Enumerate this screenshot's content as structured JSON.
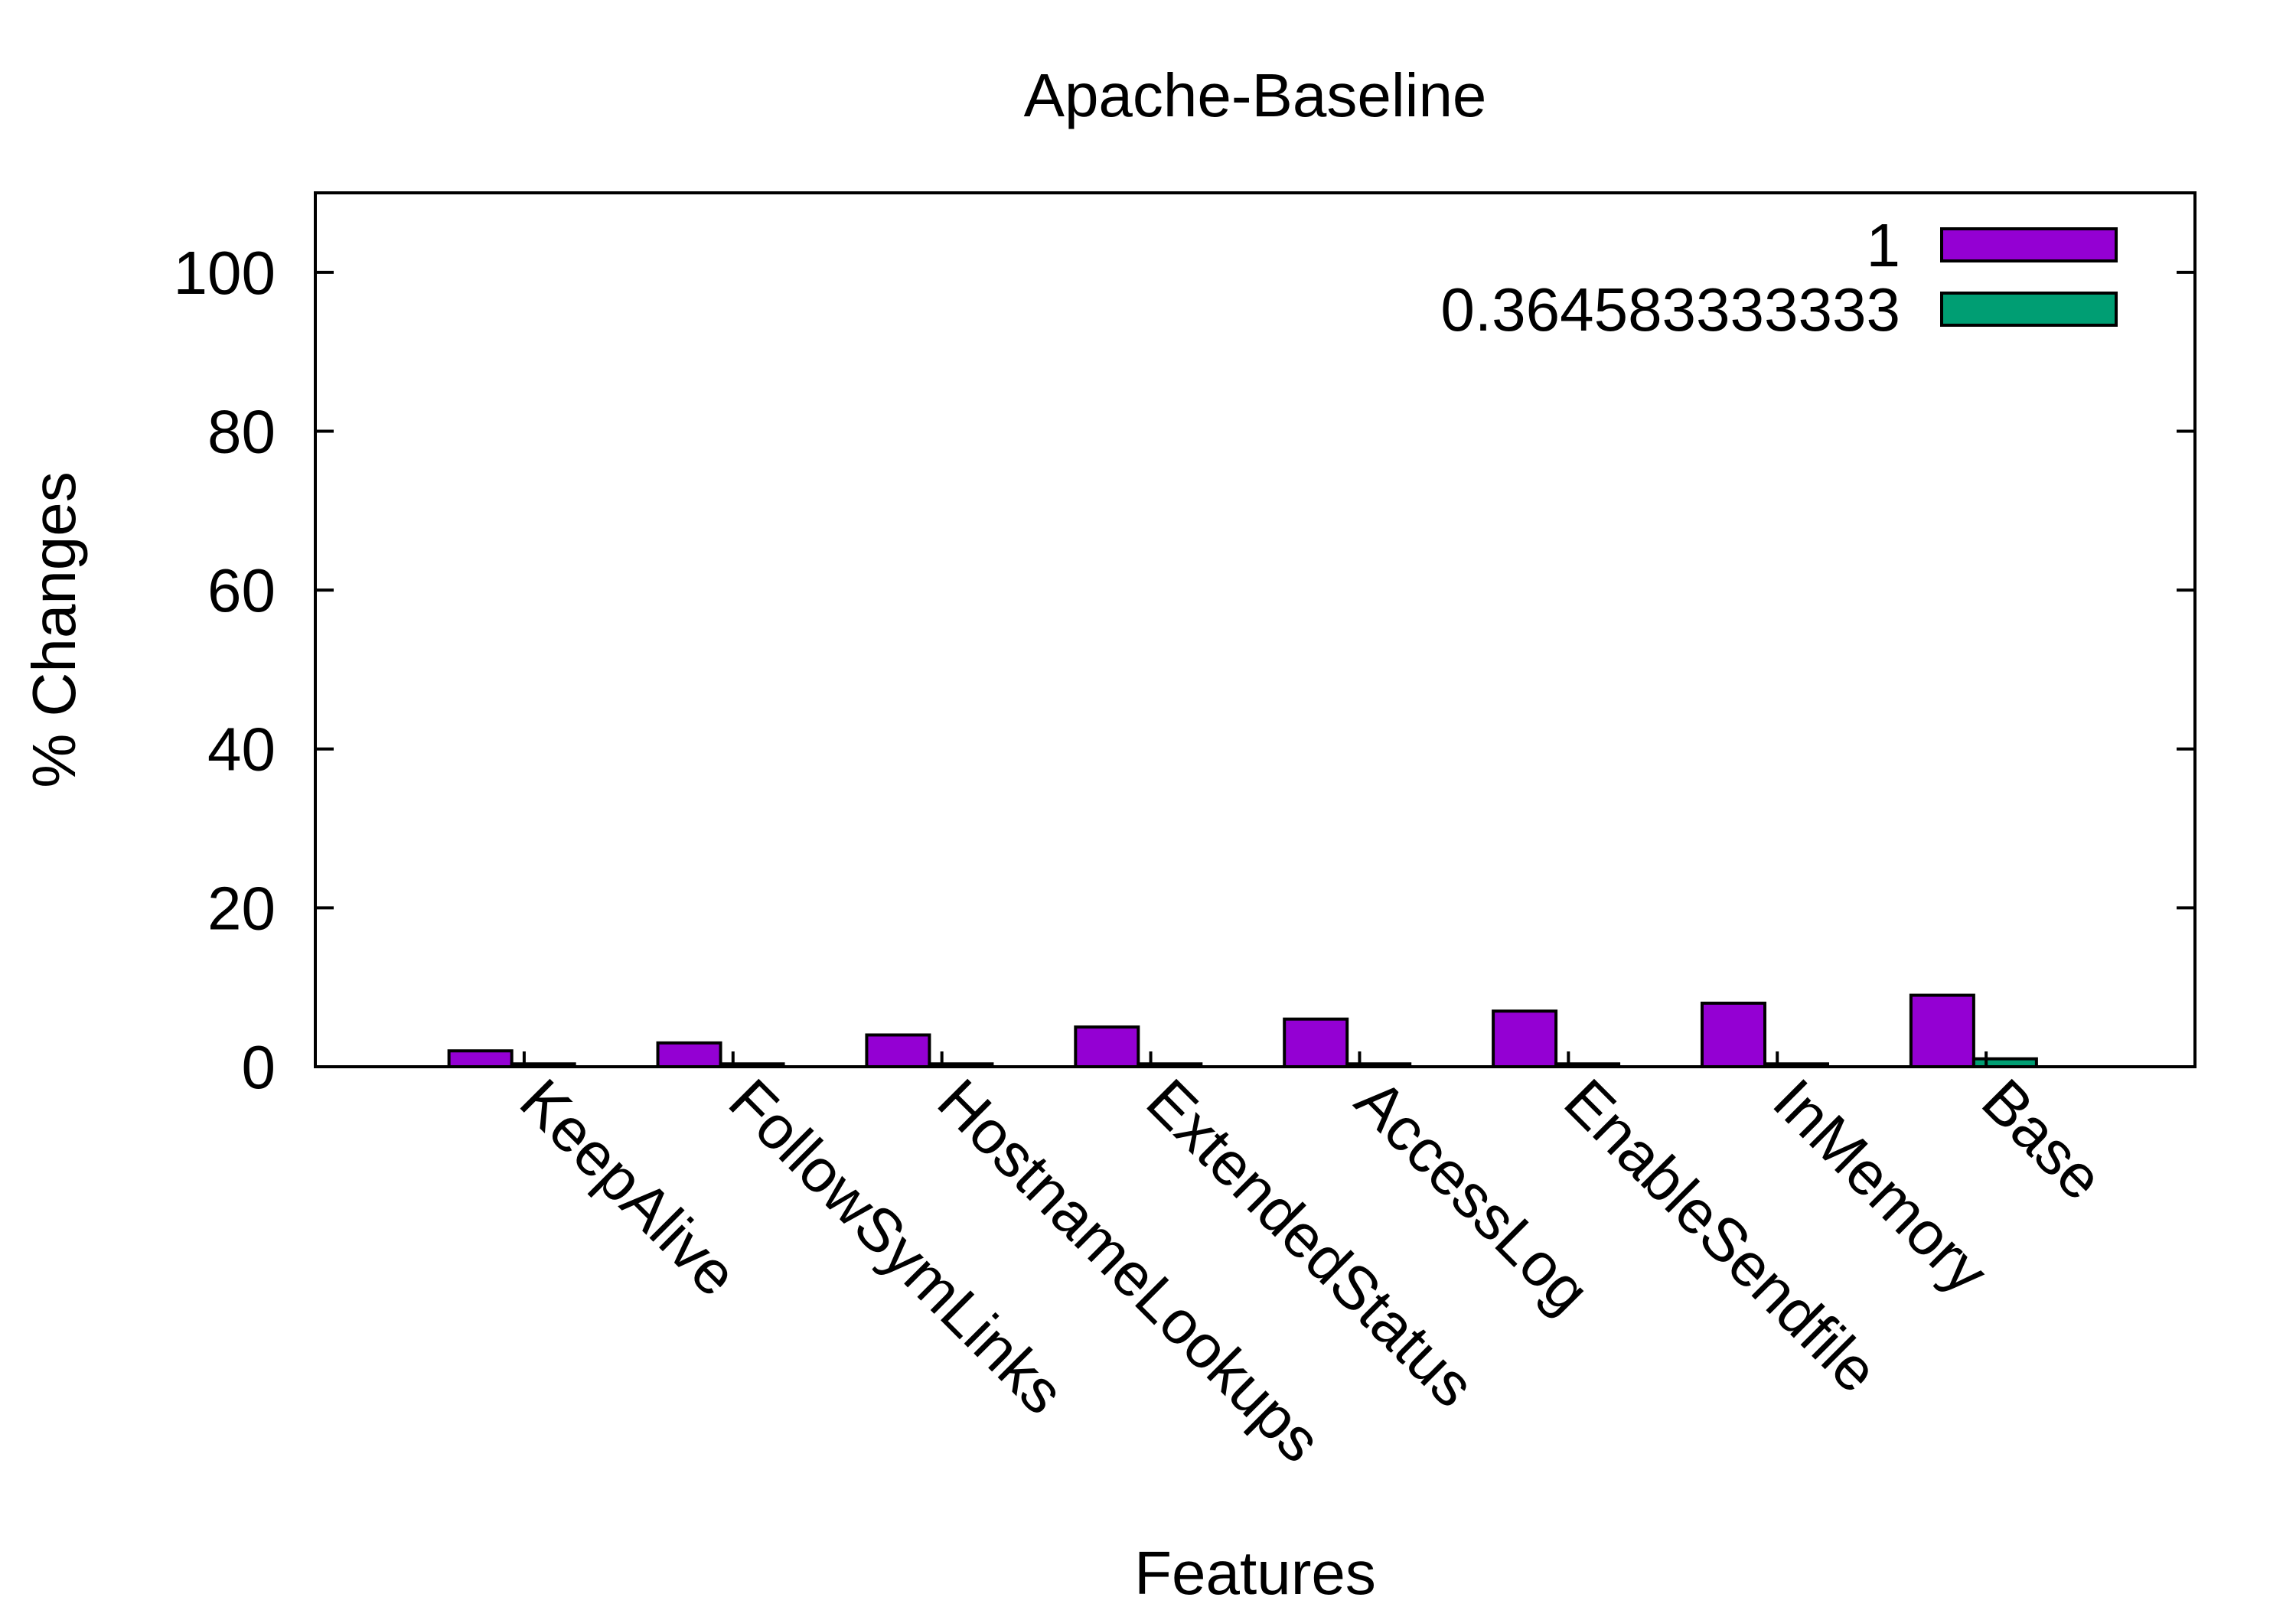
{
  "chart_data": {
    "type": "bar",
    "title": "Apache-Baseline",
    "xlabel": "Features",
    "ylabel": "% Changes",
    "ylim": [
      0,
      110
    ],
    "yticks": [
      0,
      20,
      40,
      60,
      80,
      100
    ],
    "grid": false,
    "legend_position": "top-right",
    "categories": [
      "KeepAlive",
      "FollowSymLinks",
      "HostnameLookups",
      "ExtendedStatus",
      "AccessLog",
      "EnableSendfile",
      "InMemory",
      "Base"
    ],
    "series": [
      {
        "name": "1",
        "color": "#9400d3",
        "values": [
          2,
          3,
          4,
          5,
          6,
          7,
          8,
          9
        ]
      },
      {
        "name": "0.364583333333",
        "color": "#009e73",
        "values": [
          0.36,
          0.36,
          0.36,
          0.36,
          0.36,
          0.36,
          0.36,
          1
        ]
      }
    ]
  }
}
